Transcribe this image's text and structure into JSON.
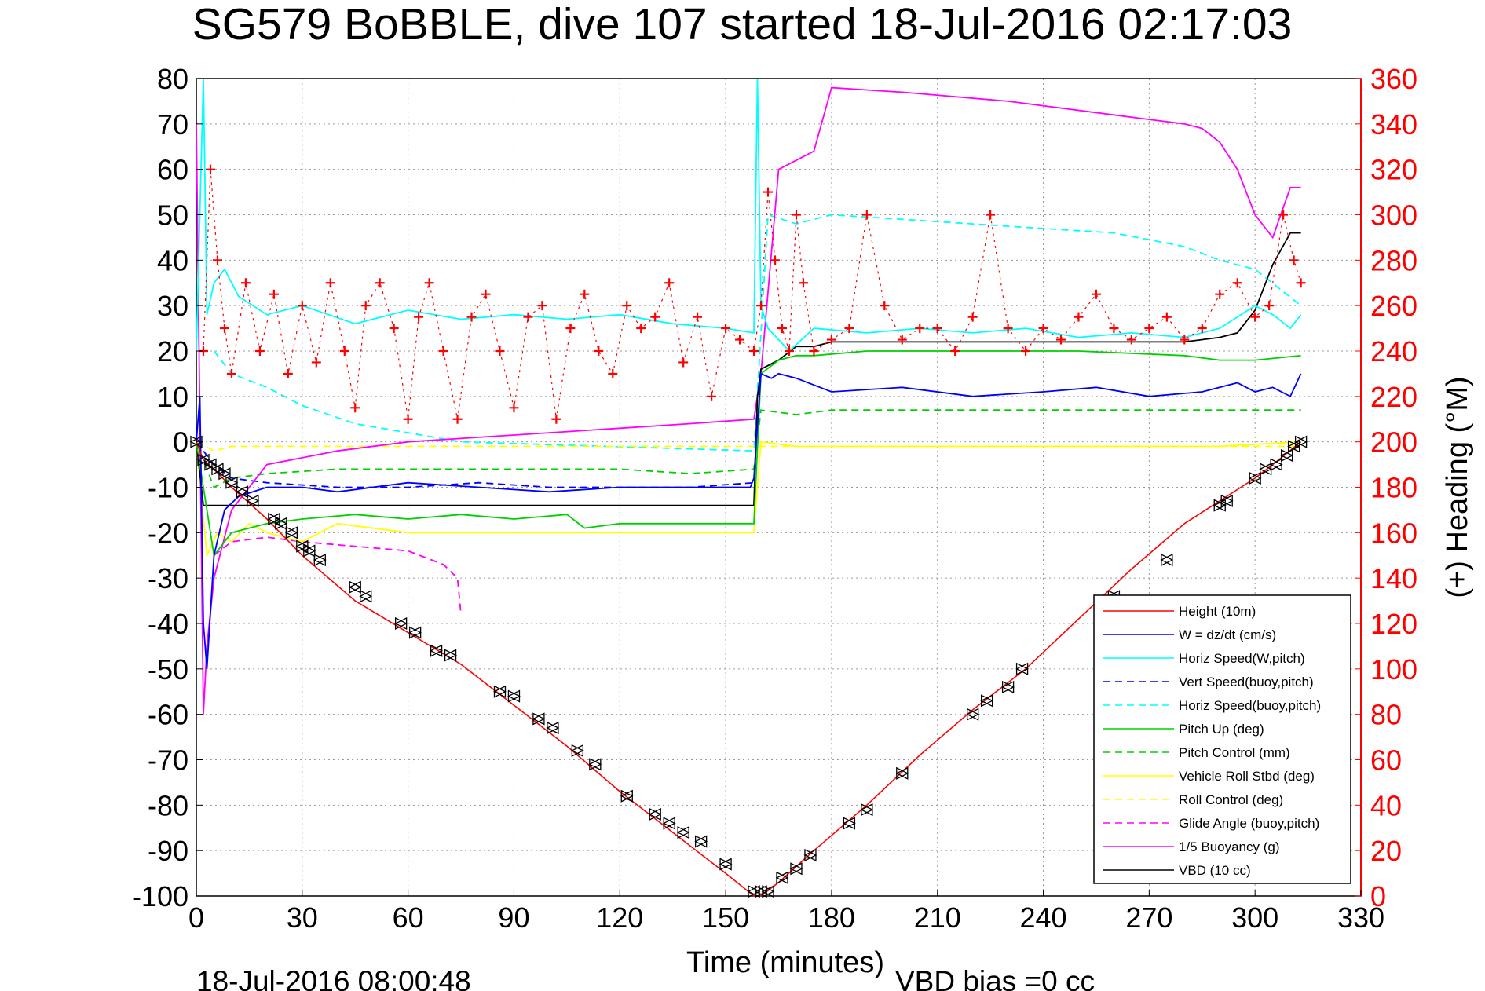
{
  "chart_data": {
    "type": "line",
    "title": "SG579 BoBBLE, dive 107 started 18-Jul-2016 02:17:03",
    "xlabel": "Time (minutes)",
    "ylabel_right": "(+) Heading (°M)",
    "footer_left": "18-Jul-2016 08:00:48",
    "footer_right": "VBD bias =0 cc",
    "xlim": [
      0,
      330
    ],
    "ylim": [
      -100,
      80
    ],
    "ylim_right": [
      0,
      360
    ],
    "xticks": [
      "0",
      "30",
      "60",
      "90",
      "120",
      "150",
      "180",
      "210",
      "240",
      "270",
      "300",
      "330"
    ],
    "yticks": [
      "80",
      "70",
      "60",
      "50",
      "40",
      "30",
      "20",
      "10",
      "0",
      "-10",
      "-20",
      "-30",
      "-40",
      "-50",
      "-60",
      "-70",
      "-80",
      "-90",
      "-100"
    ],
    "yticks_right": [
      "360",
      "340",
      "320",
      "300",
      "280",
      "260",
      "240",
      "220",
      "200",
      "180",
      "160",
      "140",
      "120",
      "100",
      "80",
      "60",
      "40",
      "20",
      "0"
    ],
    "grid": true,
    "legend_position": "bottom-right",
    "colors": {
      "right_axis": "#ff0000",
      "height": "#ff0000",
      "w": "#0000ff",
      "horiz_w": "#00ffff",
      "pitch": "#00d000",
      "roll": "#ffff00",
      "glide": "#ff00ff",
      "buoy": "#ff00ff",
      "vbd": "#000000",
      "heading": "#ff0000"
    },
    "legend": [
      {
        "label": "Height (10m)",
        "color": "#ff0000",
        "dash": false
      },
      {
        "label": "W = dz/dt (cm/s)",
        "color": "#0000ff",
        "dash": false
      },
      {
        "label": "Horiz Speed(W,pitch)",
        "color": "#00ffff",
        "dash": false
      },
      {
        "label": "Vert Speed(buoy,pitch)",
        "color": "#0000ff",
        "dash": true
      },
      {
        "label": "Horiz Speed(buoy,pitch)",
        "color": "#00ffff",
        "dash": true
      },
      {
        "label": "Pitch Up (deg)",
        "color": "#00d000",
        "dash": false
      },
      {
        "label": "Pitch Control (mm)",
        "color": "#00d000",
        "dash": true
      },
      {
        "label": "Vehicle Roll Stbd (deg)",
        "color": "#ffff00",
        "dash": false
      },
      {
        "label": "Roll Control (deg)",
        "color": "#ffff00",
        "dash": true
      },
      {
        "label": "Glide Angle (buoy,pitch)",
        "color": "#ff00ff",
        "dash": true
      },
      {
        "label": "1/5 Buoyancy (g)",
        "color": "#ff00ff",
        "dash": false
      },
      {
        "label": "VBD (10 cc)",
        "color": "#000000",
        "dash": false
      }
    ],
    "series": [
      {
        "name": "Height (10m)",
        "x": [
          0,
          2,
          5,
          10,
          20,
          30,
          45,
          60,
          75,
          90,
          105,
          120,
          135,
          150,
          158,
          160,
          165,
          175,
          190,
          205,
          220,
          235,
          250,
          265,
          280,
          290,
          300,
          305,
          313
        ],
        "y": [
          0,
          -4,
          -6,
          -10,
          -17,
          -25,
          -35,
          -42,
          -49,
          -58,
          -67,
          -77,
          -86,
          -95,
          -100,
          -100,
          -97,
          -90,
          -80,
          -69,
          -59,
          -50,
          -39,
          -28,
          -18,
          -13,
          -8,
          -5,
          0
        ]
      },
      {
        "name": "W = dz/dt (cm/s)",
        "x": [
          0,
          1,
          2,
          3,
          5,
          8,
          12,
          20,
          30,
          40,
          60,
          80,
          100,
          120,
          140,
          157,
          158,
          160,
          163,
          165,
          170,
          180,
          200,
          220,
          240,
          255,
          270,
          285,
          295,
          300,
          305,
          310,
          313
        ],
        "y": [
          0,
          10,
          -40,
          -50,
          -25,
          -15,
          -12,
          -10,
          -10,
          -11,
          -9,
          -10,
          -11,
          -10,
          -10,
          -10,
          -8,
          15,
          14,
          15,
          14,
          11,
          12,
          10,
          11,
          12,
          10,
          11,
          13,
          11,
          12,
          10,
          15
        ]
      },
      {
        "name": "Horiz Speed(W,pitch)",
        "x": [
          0,
          2,
          3,
          5,
          8,
          12,
          20,
          30,
          45,
          60,
          75,
          90,
          105,
          120,
          135,
          150,
          158,
          159,
          160,
          162,
          168,
          175,
          190,
          205,
          220,
          235,
          250,
          265,
          280,
          290,
          300,
          305,
          310,
          313
        ],
        "y": [
          20,
          80,
          28,
          35,
          38,
          32,
          28,
          30,
          26,
          29,
          27,
          28,
          27,
          28,
          26,
          25,
          24,
          80,
          30,
          25,
          20,
          25,
          24,
          25,
          24,
          25,
          23,
          24,
          23,
          25,
          30,
          28,
          25,
          28
        ]
      },
      {
        "name": "Vert Speed(buoy,pitch)",
        "x": [
          0,
          5,
          10,
          20,
          40,
          60,
          80,
          100,
          120,
          140,
          158
        ],
        "y": [
          0,
          -5,
          -8,
          -9,
          -10,
          -10,
          -9,
          -10,
          -10,
          -10,
          -9
        ]
      },
      {
        "name": "Horiz Speed(buoy,pitch)",
        "x": [
          5,
          10,
          20,
          30,
          45,
          60,
          75,
          158,
          162,
          170,
          180,
          200,
          220,
          240,
          260,
          280,
          290,
          300,
          313
        ],
        "y": [
          20,
          15,
          12,
          8,
          4,
          2,
          0,
          -2,
          50,
          48,
          50,
          49,
          48,
          47,
          46,
          43,
          40,
          38,
          30
        ]
      },
      {
        "name": "Pitch Up (deg)",
        "x": [
          0,
          5,
          10,
          20,
          30,
          45,
          60,
          75,
          90,
          105,
          110,
          120,
          135,
          150,
          158,
          160,
          165,
          170,
          175,
          190,
          220,
          250,
          280,
          290,
          300,
          313
        ],
        "y": [
          0,
          -25,
          -20,
          -18,
          -17,
          -16,
          -17,
          -16,
          -17,
          -16,
          -19,
          -18,
          -18,
          -18,
          -18,
          15,
          18,
          19,
          19,
          20,
          20,
          20,
          19,
          18,
          18,
          19
        ]
      },
      {
        "name": "Pitch Control (mm)",
        "x": [
          0,
          5,
          10,
          20,
          40,
          60,
          80,
          100,
          120,
          140,
          158,
          160,
          170,
          180,
          200,
          220,
          240,
          260,
          280,
          290,
          313
        ],
        "y": [
          0,
          -10,
          -8,
          -7,
          -6,
          -6,
          -6,
          -6,
          -6,
          -7,
          -6,
          7,
          6,
          7,
          7,
          7,
          7,
          7,
          7,
          7,
          7
        ]
      },
      {
        "name": "Vehicle Roll Stbd (deg)",
        "x": [
          0,
          3,
          6,
          10,
          15,
          20,
          30,
          40,
          60,
          80,
          100,
          120,
          140,
          158,
          160,
          170,
          200,
          230,
          260,
          290,
          313
        ],
        "y": [
          0,
          -25,
          -20,
          -22,
          -18,
          -20,
          -22,
          -18,
          -20,
          -20,
          -20,
          -20,
          -20,
          -20,
          0,
          -1,
          -1,
          -1,
          -1,
          -1,
          0
        ]
      },
      {
        "name": "Roll Control (deg)",
        "x": [
          0,
          5,
          10,
          20,
          40,
          60,
          80,
          100,
          120,
          140,
          158,
          160,
          200,
          240,
          280,
          313
        ],
        "y": [
          0,
          -2,
          -1,
          -1,
          -1,
          -1,
          -1,
          -1,
          -1,
          -1,
          -1,
          -1,
          -1,
          -1,
          -1,
          -1
        ]
      },
      {
        "name": "Glide Angle (buoy,pitch)",
        "x": [
          5,
          10,
          20,
          30,
          45,
          60,
          70,
          74,
          75
        ],
        "y": [
          -25,
          -22,
          -21,
          -22,
          -23,
          -24,
          -27,
          -30,
          -38
        ]
      },
      {
        "name": "1/5 Buoyancy (g)",
        "x": [
          0,
          2,
          3,
          5,
          10,
          20,
          40,
          60,
          80,
          100,
          120,
          140,
          158,
          160,
          165,
          170,
          175,
          180,
          200,
          230,
          260,
          270,
          280,
          285,
          290,
          295,
          300,
          305,
          310,
          313
        ],
        "y": [
          70,
          -60,
          -45,
          -30,
          -15,
          -5,
          -2,
          0,
          1,
          2,
          3,
          4,
          5,
          15,
          60,
          62,
          64,
          78,
          77,
          75,
          72,
          71,
          70,
          69,
          66,
          60,
          50,
          45,
          56,
          56
        ]
      },
      {
        "name": "VBD (10 cc)",
        "x": [
          0,
          2,
          5,
          10,
          20,
          40,
          60,
          80,
          100,
          120,
          140,
          158,
          159,
          160,
          165,
          170,
          175,
          180,
          200,
          220,
          240,
          260,
          280,
          290,
          295,
          300,
          305,
          310,
          313
        ],
        "y": [
          0,
          -14,
          -14,
          -14,
          -14,
          -14,
          -14,
          -14,
          -14,
          -14,
          -14,
          -14,
          10,
          16,
          18,
          21,
          21,
          22,
          22,
          22,
          22,
          22,
          22,
          23,
          24,
          29,
          39,
          46,
          46
        ]
      }
    ],
    "heading": {
      "name": "(+) Heading (°M)",
      "x": [
        2,
        4,
        6,
        8,
        10,
        14,
        18,
        22,
        26,
        30,
        34,
        38,
        42,
        45,
        48,
        52,
        56,
        60,
        63,
        66,
        70,
        74,
        78,
        82,
        86,
        90,
        94,
        98,
        102,
        106,
        110,
        114,
        118,
        122,
        126,
        130,
        134,
        138,
        142,
        146,
        150,
        154,
        158,
        160,
        162,
        164,
        166,
        168,
        170,
        172,
        175,
        180,
        185,
        190,
        195,
        200,
        205,
        210,
        215,
        220,
        225,
        230,
        235,
        240,
        245,
        250,
        255,
        260,
        265,
        270,
        275,
        280,
        285,
        290,
        295,
        300,
        304,
        308,
        311,
        313
      ],
      "y": [
        240,
        320,
        280,
        250,
        230,
        270,
        240,
        265,
        230,
        260,
        235,
        270,
        240,
        215,
        260,
        270,
        250,
        210,
        255,
        270,
        240,
        210,
        255,
        265,
        240,
        215,
        255,
        260,
        210,
        250,
        265,
        240,
        230,
        260,
        250,
        255,
        270,
        235,
        255,
        220,
        250,
        245,
        240,
        260,
        310,
        280,
        250,
        240,
        300,
        270,
        240,
        245,
        250,
        300,
        260,
        245,
        250,
        250,
        240,
        255,
        300,
        250,
        240,
        250,
        245,
        255,
        265,
        250,
        245,
        250,
        255,
        245,
        250,
        265,
        270,
        255,
        260,
        300,
        280,
        270
      ]
    },
    "markers": {
      "x": [
        0,
        2,
        4,
        6,
        8,
        10,
        13,
        16,
        22,
        24,
        27,
        30,
        32,
        35,
        45,
        48,
        58,
        62,
        68,
        72,
        86,
        90,
        97,
        101,
        108,
        113,
        122,
        130,
        134,
        138,
        143,
        150,
        158,
        160,
        162,
        166,
        170,
        174,
        185,
        190,
        200,
        220,
        224,
        230,
        234,
        260,
        275,
        290,
        292,
        300,
        303,
        306,
        309,
        311,
        313
      ],
      "y": [
        0,
        -4,
        -5,
        -6,
        -7,
        -9,
        -11,
        -13,
        -17,
        -18,
        -20,
        -23,
        -24,
        -26,
        -32,
        -34,
        -40,
        -42,
        -46,
        -47,
        -55,
        -56,
        -61,
        -63,
        -68,
        -71,
        -78,
        -82,
        -84,
        -86,
        -88,
        -93,
        -99,
        -99,
        -99,
        -96,
        -94,
        -91,
        -84,
        -81,
        -73,
        -60,
        -57,
        -54,
        -50,
        -34,
        -26,
        -14,
        -13,
        -8,
        -6,
        -5,
        -3,
        -1,
        0
      ]
    }
  }
}
